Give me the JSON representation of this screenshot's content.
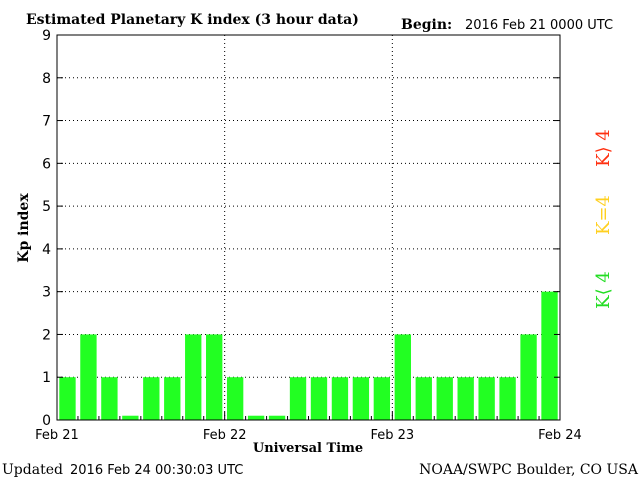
{
  "header": {
    "title": "Estimated Planetary K index (3 hour data)",
    "begin_label": "Begin:",
    "begin_value": "2016 Feb 21 0000 UTC"
  },
  "footer": {
    "updated_label": "Updated",
    "updated_value": "2016 Feb 24 00:30:03 UTC",
    "source": "NOAA/SWPC Boulder, CO USA"
  },
  "legend": [
    {
      "label": "K>4",
      "color": "#ff3010"
    },
    {
      "label": "K=4",
      "color": "#ffd020"
    },
    {
      "label": "K<4",
      "color": "#22dd22"
    }
  ],
  "chart_data": {
    "type": "bar",
    "title": "Estimated Planetary K index (3 hour data)",
    "xlabel": "Universal Time",
    "ylabel": "Kp index",
    "ylim": [
      0,
      9
    ],
    "yticks": [
      "0",
      "1",
      "2",
      "3",
      "4",
      "5",
      "6",
      "7",
      "8",
      "9"
    ],
    "xtick_labels": [
      "Feb 21",
      "Feb 22",
      "Feb 23",
      "Feb 24"
    ],
    "grid": true,
    "bar_color": "#22ff22",
    "categories": [
      "Feb 21 00",
      "Feb 21 03",
      "Feb 21 06",
      "Feb 21 09",
      "Feb 21 12",
      "Feb 21 15",
      "Feb 21 18",
      "Feb 21 21",
      "Feb 22 00",
      "Feb 22 03",
      "Feb 22 06",
      "Feb 22 09",
      "Feb 22 12",
      "Feb 22 15",
      "Feb 22 18",
      "Feb 22 21",
      "Feb 23 00",
      "Feb 23 03",
      "Feb 23 06",
      "Feb 23 09",
      "Feb 23 12",
      "Feb 23 15",
      "Feb 23 18",
      "Feb 23 21"
    ],
    "values": [
      1,
      2,
      1,
      0.1,
      1,
      1,
      2,
      2,
      1,
      0.1,
      0.1,
      1,
      1,
      1,
      1,
      1,
      2,
      1,
      1,
      1,
      1,
      1,
      2,
      3
    ]
  }
}
